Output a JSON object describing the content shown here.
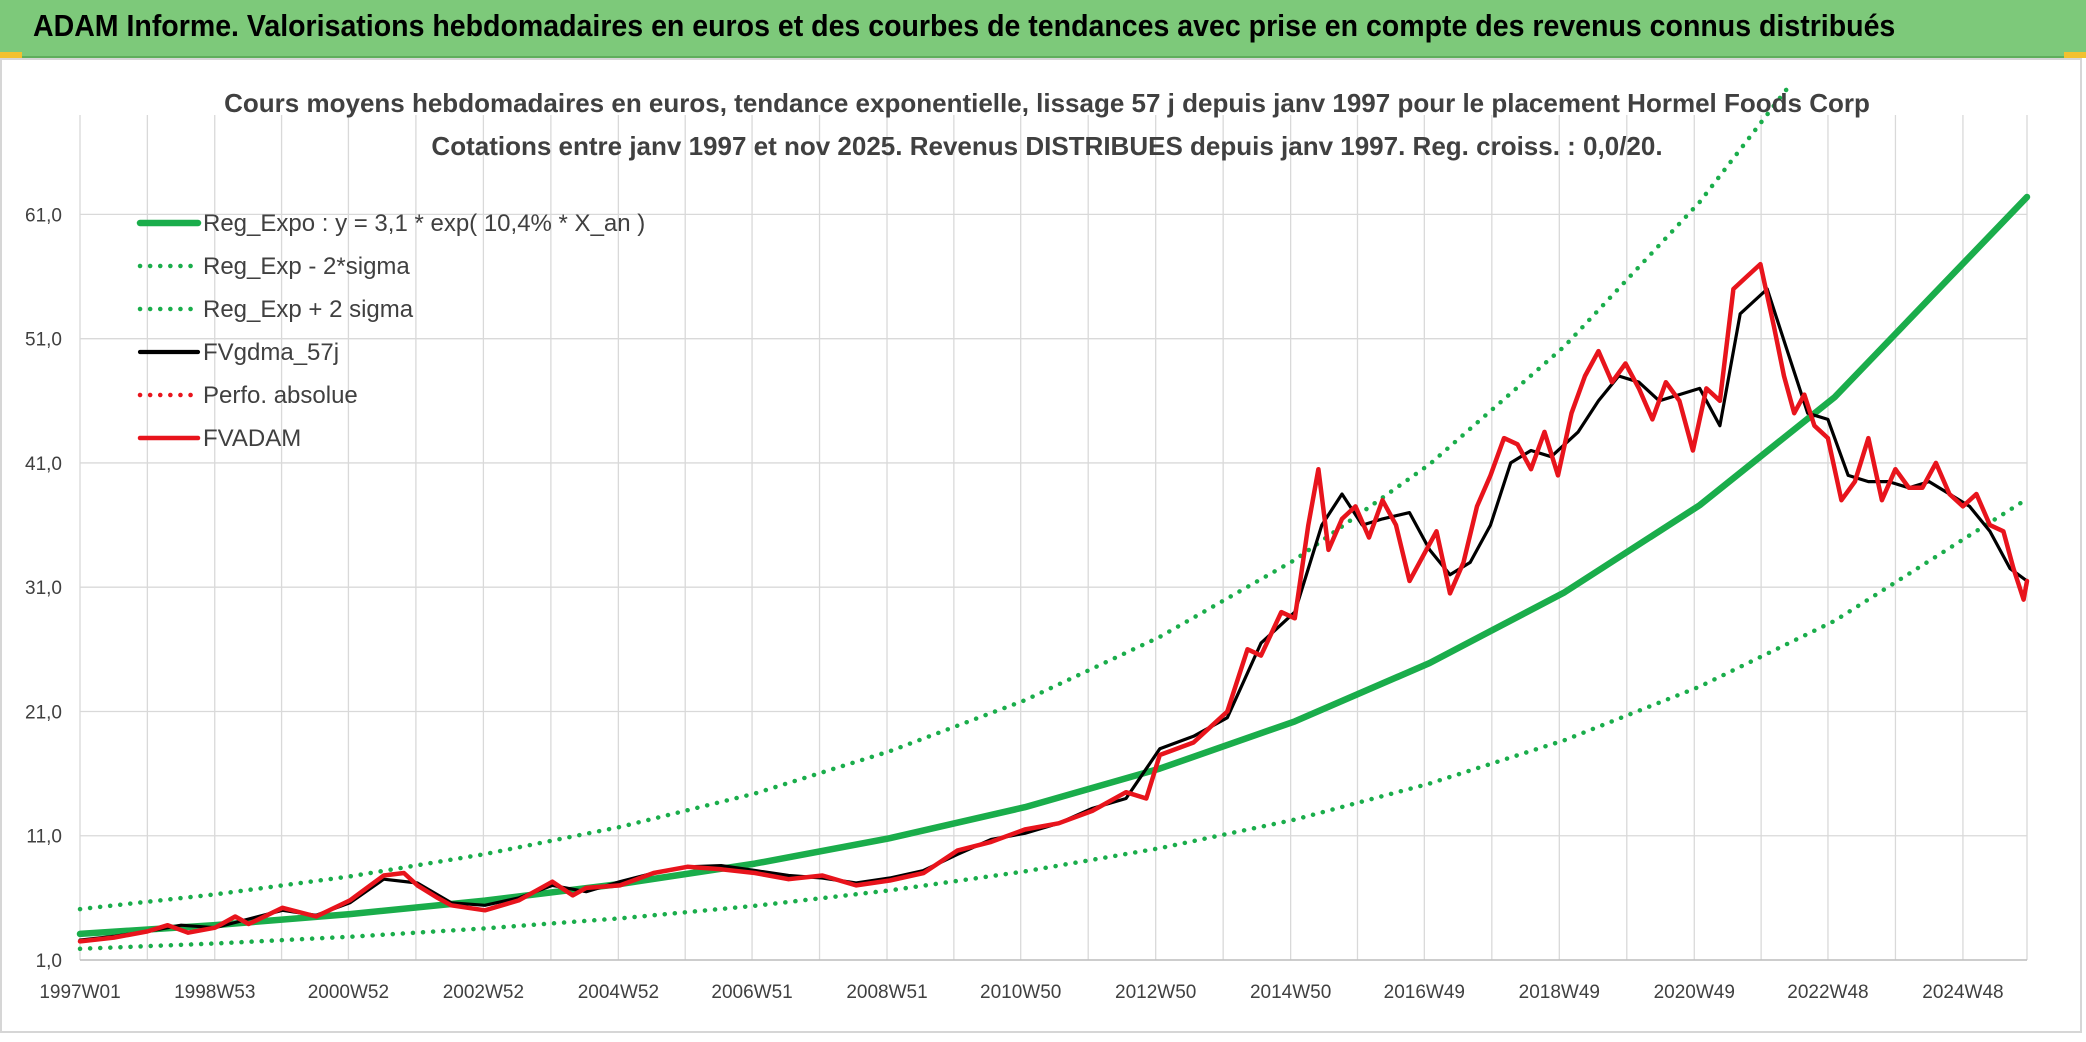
{
  "header": {
    "title": "ADAM Informe. Valorisations hebdomadaires en euros et des courbes de tendances avec prise en compte des revenus connus distribués"
  },
  "colors": {
    "banner": "#7dc97a",
    "trend": "#1aad4b",
    "price": "#e8141c",
    "smooth": "#000000",
    "grid": "#d9d9d9"
  },
  "chart_data": {
    "type": "line",
    "title": "Cours moyens hebdomadaires en euros, tendance exponentielle, lissage 57 j depuis janv 1997 pour le placement Hormel Foods Corp",
    "subtitle": "Cotations entre janv 1997 et nov 2025. Revenus DISTRIBUES depuis janv 1997. Reg. croiss. : 0,0/20.",
    "xlabel": "",
    "ylabel": "",
    "x_tick_labels": [
      "1997W01",
      "1998W53",
      "2000W52",
      "2002W52",
      "2004W52",
      "2006W51",
      "2008W51",
      "2010W50",
      "2012W50",
      "2014W50",
      "2016W49",
      "2018W49",
      "2020W49",
      "2022W48",
      "2024W48"
    ],
    "y_tick_labels": [
      "1,0",
      "11,0",
      "21,0",
      "31,0",
      "41,0",
      "51,0",
      "61,0"
    ],
    "ylim": [
      1,
      69
    ],
    "xlim": [
      1997.0,
      2025.85
    ],
    "grid": true,
    "legend_position": "top-left",
    "series": [
      {
        "name": "Reg_Expo : y = 3,1 * exp( 10,4% *  X_an )",
        "style": "solid-thick",
        "color": "#1aad4b",
        "x": [
          1997,
          1999,
          2001,
          2003,
          2005,
          2007,
          2009,
          2011,
          2013,
          2015,
          2017,
          2019,
          2021,
          2023,
          2025.85
        ],
        "y": [
          3.1,
          3.81,
          4.69,
          5.78,
          7.12,
          8.76,
          10.8,
          13.3,
          16.4,
          20.2,
          24.9,
          30.6,
          37.6,
          46.3,
          62.4
        ]
      },
      {
        "name": "Reg_Exp - 2*sigma",
        "style": "dotted",
        "color": "#1aad4b",
        "x": [
          1997,
          1999,
          2001,
          2003,
          2005,
          2007,
          2009,
          2011,
          2013,
          2015,
          2017,
          2019,
          2021,
          2023,
          2025.85
        ],
        "y": [
          1.9,
          2.33,
          2.87,
          3.54,
          4.35,
          5.36,
          6.6,
          8.13,
          10.0,
          12.3,
          15.2,
          18.7,
          23.0,
          28.3,
          38.1
        ]
      },
      {
        "name": "Reg_Exp + 2 sigma",
        "style": "dotted",
        "color": "#1aad4b",
        "x": [
          1997,
          1999,
          2001,
          2003,
          2005,
          2007,
          2009,
          2011,
          2013,
          2015,
          2017,
          2019,
          2021,
          2022.35
        ],
        "y": [
          5.1,
          6.28,
          7.73,
          9.52,
          11.7,
          14.4,
          17.8,
          21.9,
          27.0,
          33.2,
          40.9,
          50.4,
          62.0,
          71.5
        ]
      },
      {
        "name": "FVgdma_57j",
        "style": "solid",
        "color": "#000000",
        "x": [
          1997,
          1997.5,
          1998,
          1998.5,
          1999,
          1999.5,
          2000,
          2000.5,
          2001,
          2001.5,
          2002,
          2002.5,
          2003,
          2003.5,
          2004,
          2004.5,
          2005,
          2005.5,
          2006,
          2006.5,
          2007,
          2007.5,
          2008,
          2008.5,
          2009,
          2009.5,
          2010,
          2010.5,
          2011,
          2011.5,
          2012,
          2012.5,
          2013,
          2013.5,
          2014,
          2014.5,
          2015,
          2015.4,
          2015.7,
          2016,
          2016.3,
          2016.7,
          2017,
          2017.3,
          2017.6,
          2017.9,
          2018.2,
          2018.5,
          2018.8,
          2019.2,
          2019.5,
          2019.8,
          2020.1,
          2020.4,
          2020.7,
          2021,
          2021.3,
          2021.6,
          2022,
          2022.3,
          2022.6,
          2022.9,
          2023.2,
          2023.5,
          2023.8,
          2024.1,
          2024.4,
          2024.7,
          2025,
          2025.3,
          2025.6,
          2025.85
        ],
        "y": [
          2.6,
          2.9,
          3.3,
          3.8,
          3.6,
          4.3,
          5.0,
          4.6,
          5.6,
          7.5,
          7.2,
          5.6,
          5.4,
          6.0,
          7.0,
          6.5,
          7.3,
          8.0,
          8.5,
          8.6,
          8.2,
          7.8,
          7.6,
          7.2,
          7.6,
          8.2,
          9.5,
          10.7,
          11.2,
          12.0,
          13.2,
          14.0,
          18.0,
          19.0,
          20.5,
          26.5,
          29.0,
          36.0,
          38.5,
          36.0,
          36.5,
          37.0,
          34.0,
          32.0,
          33.0,
          36.0,
          41.0,
          42.0,
          41.5,
          43.5,
          46.0,
          48.0,
          47.5,
          46.0,
          46.5,
          47.0,
          44.0,
          53.0,
          55.0,
          50.0,
          45.0,
          44.5,
          40.0,
          39.5,
          39.5,
          39.0,
          39.5,
          38.5,
          37.5,
          35.5,
          32.5,
          31.5
        ]
      },
      {
        "name": "Perfo. absolue",
        "style": "dotted",
        "color": "#e8141c",
        "x": [],
        "y": []
      },
      {
        "name": "FVADAM",
        "style": "solid-thick",
        "color": "#e8141c",
        "x": [
          1997,
          1997.5,
          1998,
          1998.3,
          1998.6,
          1999,
          1999.3,
          1999.5,
          2000,
          2000.5,
          2001,
          2001.5,
          2001.8,
          2002,
          2002.3,
          2002.5,
          2003,
          2003.5,
          2004,
          2004.3,
          2004.5,
          2005,
          2005.5,
          2006,
          2006.5,
          2007,
          2007.5,
          2008,
          2008.5,
          2009,
          2009.5,
          2010,
          2010.5,
          2011,
          2011.5,
          2012,
          2012.5,
          2012.8,
          2013,
          2013.5,
          2014,
          2014.3,
          2014.5,
          2014.8,
          2015,
          2015.2,
          2015.35,
          2015.5,
          2015.7,
          2015.9,
          2016.1,
          2016.3,
          2016.5,
          2016.7,
          2016.9,
          2017.1,
          2017.3,
          2017.5,
          2017.7,
          2017.9,
          2018.1,
          2018.3,
          2018.5,
          2018.7,
          2018.9,
          2019.1,
          2019.3,
          2019.5,
          2019.7,
          2019.9,
          2020.1,
          2020.3,
          2020.5,
          2020.7,
          2020.9,
          2021.1,
          2021.3,
          2021.5,
          2021.7,
          2021.9,
          2022.1,
          2022.25,
          2022.4,
          2022.55,
          2022.7,
          2022.9,
          2023.1,
          2023.3,
          2023.5,
          2023.7,
          2023.9,
          2024.1,
          2024.3,
          2024.5,
          2024.7,
          2024.9,
          2025.1,
          2025.3,
          2025.5,
          2025.65,
          2025.8,
          2025.85
        ],
        "y": [
          2.5,
          2.8,
          3.3,
          3.8,
          3.2,
          3.6,
          4.5,
          3.9,
          5.2,
          4.5,
          5.8,
          7.8,
          8.0,
          7.0,
          6.0,
          5.4,
          5.0,
          5.8,
          7.3,
          6.2,
          6.8,
          7.0,
          8.0,
          8.5,
          8.3,
          8.0,
          7.5,
          7.8,
          7.0,
          7.4,
          8.0,
          9.8,
          10.5,
          11.5,
          12.0,
          13.0,
          14.5,
          14.0,
          17.5,
          18.5,
          21.0,
          26.0,
          25.5,
          29.0,
          28.5,
          36.0,
          40.5,
          34.0,
          36.5,
          37.5,
          35.0,
          38.0,
          36.0,
          31.5,
          33.5,
          35.5,
          30.5,
          33.0,
          37.5,
          40.0,
          43.0,
          42.5,
          40.5,
          43.5,
          40.0,
          45.0,
          48.0,
          50.0,
          47.5,
          49.0,
          47.0,
          44.5,
          47.5,
          46.0,
          42.0,
          47.0,
          46.0,
          55.0,
          56.0,
          57.0,
          52.0,
          48.0,
          45.0,
          46.5,
          44.0,
          43.0,
          38.0,
          39.5,
          43.0,
          38.0,
          40.5,
          39.0,
          39.0,
          41.0,
          38.5,
          37.5,
          38.5,
          36.0,
          35.5,
          32.5,
          30.0,
          31.5
        ]
      }
    ]
  }
}
